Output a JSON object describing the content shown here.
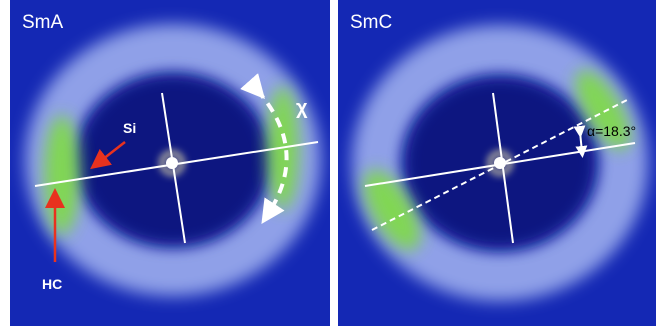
{
  "panels": [
    {
      "label": "SmA",
      "annotations": {
        "si": "Si",
        "hc": "HC",
        "chi": "χ"
      }
    },
    {
      "label": "SmC",
      "annotations": {
        "alpha": "α=18.3°"
      }
    }
  ]
}
